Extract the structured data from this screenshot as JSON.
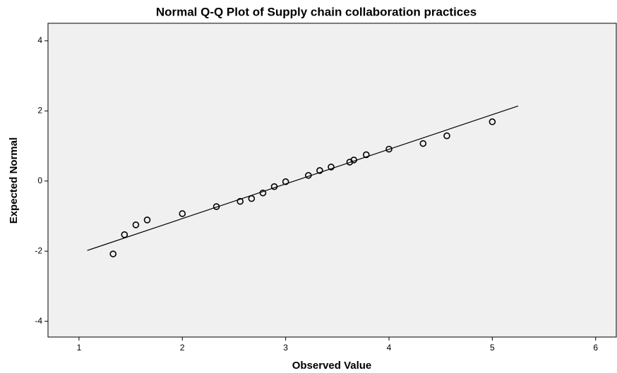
{
  "chart_data": {
    "type": "scatter",
    "title": "Normal Q-Q Plot of Supply chain collaboration practices",
    "x_label": "Observed Value",
    "y_label": "Expected Normal",
    "x": [
      1.33,
      1.44,
      1.55,
      1.66,
      2.0,
      2.33,
      2.56,
      2.67,
      2.78,
      2.89,
      3.0,
      3.22,
      3.33,
      3.44,
      3.62,
      3.66,
      3.78,
      4.0,
      4.33,
      4.56,
      5.0
    ],
    "values": [
      -2.08,
      -1.53,
      -1.25,
      -1.11,
      -0.93,
      -0.73,
      -0.58,
      -0.5,
      -0.34,
      -0.16,
      -0.02,
      0.16,
      0.3,
      0.4,
      0.54,
      0.6,
      0.75,
      0.91,
      1.07,
      1.29,
      1.69
    ],
    "line": {
      "x": [
        1.08,
        5.25
      ],
      "y": [
        -1.98,
        2.14
      ]
    },
    "xlim": [
      0.7,
      6.2
    ],
    "ylim": [
      -4.45,
      4.5
    ],
    "xticks": [
      1,
      2,
      3,
      4,
      5,
      6
    ],
    "yticks": [
      -4,
      -2,
      0,
      2,
      4
    ],
    "color": "#000000",
    "background": "#f0f0f0"
  }
}
